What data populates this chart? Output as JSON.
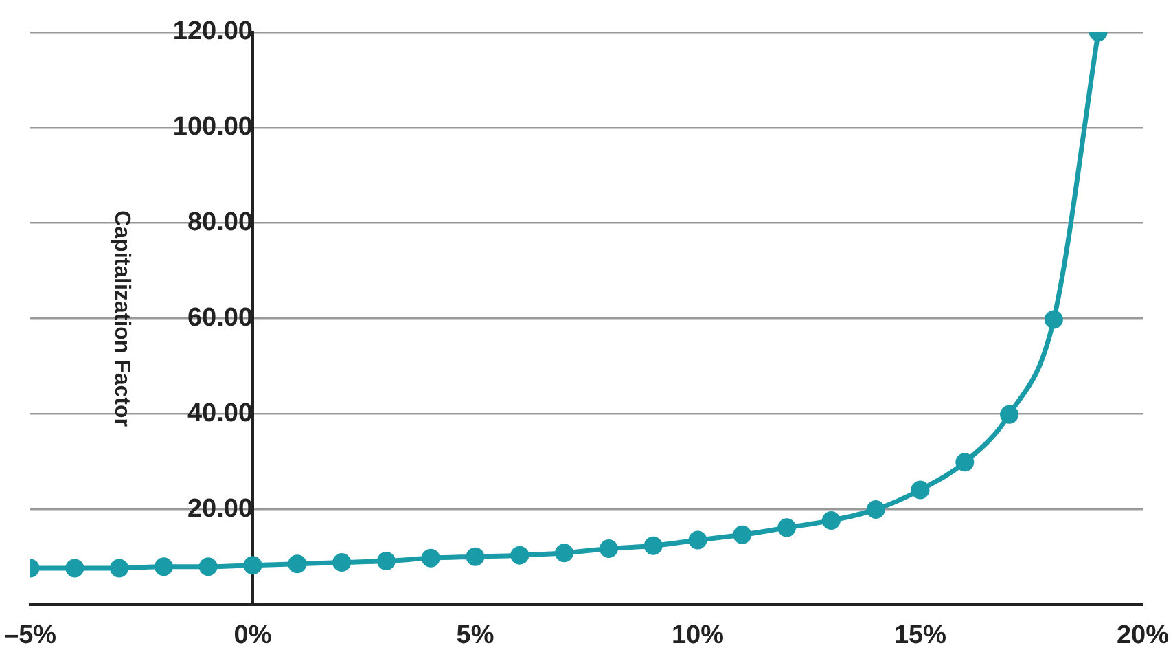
{
  "chart_data": {
    "type": "line",
    "ylabel": "Capitalization Factor",
    "x": [
      -5,
      -4,
      -3,
      -2,
      -1,
      0,
      1,
      2,
      3,
      4,
      5,
      6,
      7,
      8,
      9,
      10,
      11,
      12,
      13,
      14,
      15,
      16,
      17,
      18,
      19
    ],
    "series": [
      {
        "color": "#1a9ba8",
        "values": [
          7.7,
          7.7,
          7.7,
          8.0,
          8.0,
          8.3,
          8.6,
          8.9,
          9.2,
          9.8,
          10.1,
          10.4,
          10.9,
          11.8,
          12.4,
          13.6,
          14.7,
          16.2,
          17.7,
          20,
          24.1,
          29.9,
          39.9,
          59.8,
          120
        ]
      }
    ],
    "xlim": [
      -5,
      20
    ],
    "xticks": [
      {
        "value": -5,
        "label": "–5%"
      },
      {
        "value": 0,
        "label": "0%"
      },
      {
        "value": 5,
        "label": "5%"
      },
      {
        "value": 10,
        "label": "10%"
      },
      {
        "value": 15,
        "label": "15%"
      },
      {
        "value": 20,
        "label": "20%"
      }
    ],
    "ylim": [
      0,
      120
    ],
    "yticks": [
      {
        "value": 20,
        "label": "20.00"
      },
      {
        "value": 40,
        "label": "40.00"
      },
      {
        "value": 60,
        "label": "60.00"
      },
      {
        "value": 80,
        "label": "80.00"
      },
      {
        "value": 100,
        "label": "100.00"
      },
      {
        "value": 120,
        "label": "120.00"
      }
    ],
    "grid": "y",
    "legend": false,
    "marker": "circle",
    "line_style": "solid"
  }
}
